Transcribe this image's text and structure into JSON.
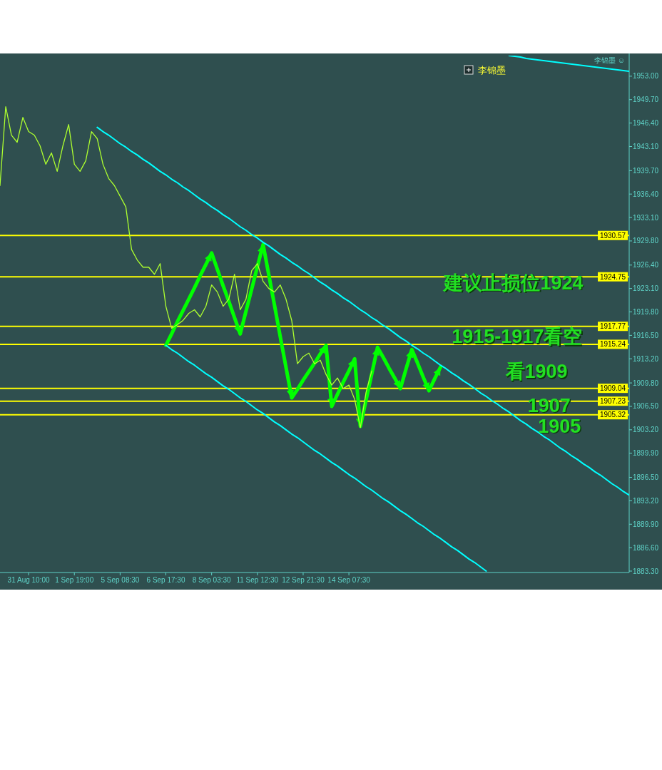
{
  "chart_data": {
    "type": "line",
    "categories": [
      null,
      null,
      null,
      null,
      null,
      "31 Aug 10:00",
      null,
      null,
      null,
      null,
      null,
      null,
      null,
      "1 Sep 19:00",
      null,
      null,
      null,
      null,
      null,
      null,
      null,
      "5 Sep 08:30",
      null,
      null,
      null,
      null,
      null,
      null,
      null,
      "6 Sep 17:30",
      null,
      null,
      null,
      null,
      null,
      null,
      null,
      "8 Sep 03:30",
      null,
      null,
      null,
      null,
      null,
      null,
      null,
      "11 Sep 12:30",
      null,
      null,
      null,
      null,
      null,
      null,
      null,
      "12 Sep 21:30",
      null,
      null,
      null,
      null,
      null,
      null,
      null,
      "14 Sep 07:30",
      null,
      null,
      null,
      null,
      null,
      null,
      null,
      null,
      null,
      null,
      null,
      null,
      null,
      null,
      null,
      null,
      null,
      null,
      null,
      null,
      null,
      null,
      null,
      null,
      null,
      null,
      null,
      null,
      null,
      null,
      null,
      null,
      null,
      null,
      null,
      null,
      null,
      null,
      null,
      null,
      null,
      null,
      null,
      null,
      null,
      null,
      null,
      null,
      null
    ],
    "ylim": [
      1883.1,
      1955.9
    ],
    "yticks": [
      {
        "value": 1953,
        "label": "1953.00"
      },
      {
        "value": 1949.7,
        "label": "1949.70"
      },
      {
        "value": 1946.4,
        "label": "1946.40"
      },
      {
        "value": 1943.1,
        "label": "1943.10"
      },
      {
        "value": 1939.7,
        "label": "1939.70"
      },
      {
        "value": 1936.4,
        "label": "1936.40"
      },
      {
        "value": 1933.1,
        "label": "1933.10"
      },
      {
        "value": 1929.8,
        "label": "1929.80"
      },
      {
        "value": 1926.4,
        "label": "1926.40"
      },
      {
        "value": 1923.1,
        "label": "1923.10"
      },
      {
        "value": 1919.8,
        "label": "1919.80"
      },
      {
        "value": 1916.5,
        "label": "1916.50"
      },
      {
        "value": 1913.2,
        "label": "1913.20"
      },
      {
        "value": 1909.8,
        "label": "1909.80"
      },
      {
        "value": 1906.5,
        "label": "1906.50"
      },
      {
        "value": 1903.2,
        "label": "1903.20"
      },
      {
        "value": 1899.9,
        "label": "1899.90"
      },
      {
        "value": 1896.5,
        "label": "1896.50"
      },
      {
        "value": 1893.2,
        "label": "1893.20"
      },
      {
        "value": 1889.9,
        "label": "1889.90"
      },
      {
        "value": 1886.6,
        "label": "1886.60"
      },
      {
        "value": 1883.3,
        "label": "1883.30"
      }
    ],
    "series": [
      {
        "color": "#adff2f",
        "values": [
          1937.6,
          1948.7,
          1944.7,
          1943.7,
          1947.2,
          1945.2,
          1944.7,
          1943.2,
          1940.6,
          1942.2,
          1939.6,
          1943.2,
          1946.2,
          1940.6,
          1939.6,
          1941.1,
          1945.2,
          1944.2,
          1940.6,
          1938.6,
          1937.6,
          1936.1,
          1934.6,
          1928.6,
          1927.1,
          1926.1,
          1926.1,
          1925.1,
          1926.6,
          1920.6,
          1917.5,
          1918.0,
          1918.6,
          1919.6,
          1920.1,
          1919.1,
          1920.6,
          1923.6,
          1922.6,
          1920.6,
          1921.6,
          1925.1,
          1920.1,
          1921.6,
          1925.6,
          1926.6,
          1924.1,
          1923.1,
          1922.6,
          1923.6,
          1921.6,
          1918.6,
          1912.5,
          1913.5,
          1914.0,
          1912.5,
          1913.0,
          1911.0,
          1909.5,
          1910.5,
          1909.0,
          1909.5,
          1907.5,
          1903.5,
          1908.5,
          1911.5,
          null,
          null,
          null,
          null,
          null,
          null,
          null,
          null,
          null,
          null,
          null,
          null,
          null,
          null,
          null,
          null,
          null,
          null,
          null,
          null,
          null,
          null,
          null,
          null,
          null,
          null,
          null,
          null,
          null,
          null,
          null,
          null,
          null,
          null,
          null,
          null,
          null,
          null,
          null,
          null,
          null,
          null,
          null,
          null,
          null
        ]
      },
      {
        "color": "#00ffff",
        "values": [
          null,
          null,
          null,
          null,
          null,
          null,
          null,
          null,
          null,
          null,
          null,
          null,
          null,
          null,
          null,
          null,
          null,
          1945.8,
          1945.2,
          1944.7,
          1944.1,
          1943.5,
          1943.0,
          1942.4,
          1941.9,
          1941.3,
          1940.8,
          1940.2,
          1939.6,
          1939.1,
          1938.5,
          1938.0,
          1937.4,
          1936.9,
          1936.3,
          1935.7,
          1935.2,
          1934.6,
          1934.1,
          1933.5,
          1933.0,
          1932.4,
          1931.8,
          1931.3,
          1930.7,
          1930.2,
          1929.6,
          1929.1,
          1928.5,
          1927.9,
          1927.4,
          1926.8,
          1926.3,
          1925.7,
          1925.2,
          1924.6,
          1924.0,
          1923.5,
          1922.9,
          1922.4,
          1921.8,
          1921.3,
          1920.7,
          1920.1,
          1919.6,
          1919.0,
          1918.5,
          1917.9,
          1917.4,
          1916.8,
          1916.2,
          1915.7,
          1915.1,
          1914.6,
          1914.0,
          1913.5,
          1912.9,
          1912.3,
          1911.8,
          1911.2,
          1910.7,
          1910.1,
          1909.6,
          1909.0,
          1908.4,
          1907.9,
          1907.3,
          1906.8,
          1906.2,
          1905.7,
          1905.1,
          1904.5,
          1904.0,
          1903.4,
          1902.9,
          1902.3,
          1901.8,
          1901.2,
          1900.6,
          1900.1,
          1899.5,
          1899.0,
          1898.4,
          1897.9,
          1897.3,
          1896.8,
          1896.2,
          1895.6,
          1895.1,
          1894.5,
          1894.0
        ]
      },
      {
        "color": "#00ffff",
        "values": [
          null,
          null,
          null,
          null,
          null,
          null,
          null,
          null,
          null,
          null,
          null,
          null,
          null,
          null,
          null,
          null,
          null,
          null,
          null,
          null,
          null,
          null,
          null,
          null,
          null,
          null,
          null,
          null,
          null,
          1915.1,
          1914.5,
          1914.0,
          1913.4,
          1912.8,
          1912.3,
          1911.7,
          1911.1,
          1910.6,
          1910.0,
          1909.4,
          1908.9,
          1908.3,
          1907.7,
          1907.2,
          1906.6,
          1906.0,
          1905.5,
          1904.9,
          1904.3,
          1903.8,
          1903.2,
          1902.6,
          1902.1,
          1901.5,
          1900.9,
          1900.3,
          1899.8,
          1899.2,
          1898.6,
          1898.1,
          1897.5,
          1896.9,
          1896.4,
          1895.8,
          1895.2,
          1894.7,
          1894.1,
          1893.5,
          1893.0,
          1892.4,
          1891.8,
          1891.3,
          1890.7,
          1890.1,
          1889.6,
          1889.0,
          1888.4,
          1887.9,
          1887.3,
          1886.7,
          1886.2,
          1885.6,
          1885.0,
          1884.5,
          1883.9,
          1883.3,
          null,
          null,
          null,
          null,
          null,
          null,
          null,
          null,
          null,
          null,
          null,
          null,
          null,
          null,
          null,
          null,
          null,
          null,
          null,
          null,
          null,
          null,
          null,
          null,
          null
        ]
      },
      {
        "color": "#00ffff",
        "values": [
          null,
          null,
          null,
          null,
          null,
          null,
          null,
          null,
          null,
          null,
          null,
          null,
          null,
          null,
          null,
          null,
          null,
          null,
          null,
          null,
          null,
          null,
          null,
          null,
          null,
          null,
          null,
          null,
          null,
          null,
          null,
          null,
          null,
          null,
          null,
          null,
          null,
          null,
          null,
          null,
          null,
          null,
          null,
          null,
          null,
          null,
          null,
          null,
          null,
          null,
          null,
          null,
          null,
          null,
          null,
          null,
          null,
          null,
          null,
          null,
          null,
          null,
          null,
          null,
          null,
          null,
          null,
          null,
          null,
          null,
          null,
          null,
          null,
          null,
          null,
          null,
          null,
          null,
          null,
          null,
          null,
          null,
          null,
          null,
          null,
          null,
          null,
          null,
          null,
          1955.9,
          1955.8,
          1955.7,
          1955.5,
          1955.4,
          1955.3,
          1955.2,
          1955.1,
          1955.0,
          1954.9,
          1954.8,
          1954.7,
          1954.6,
          1954.5,
          1954.4,
          1954.3,
          1954.2,
          1954.1,
          1954.0,
          1953.9,
          1953.8,
          1953.7
        ]
      },
      {
        "color": "#00ff00",
        "values": [
          null,
          null,
          null,
          null,
          null,
          null,
          null,
          null,
          null,
          null,
          null,
          null,
          null,
          null,
          null,
          null,
          null,
          null,
          null,
          null,
          null,
          null,
          null,
          null,
          null,
          null,
          null,
          null,
          null,
          1915.1,
          1916.7,
          1918.4,
          1920.0,
          1921.6,
          1923.2,
          1924.9,
          1926.5,
          1928.1,
          1925.8,
          1923.5,
          1921.3,
          1919.0,
          1916.7,
          1919.9,
          1923.0,
          1926.2,
          1929.3,
          1925.0,
          1920.7,
          1916.3,
          1912.0,
          1907.7,
          1908.9,
          1910.2,
          1911.4,
          1912.6,
          1913.9,
          1915.1,
          1906.5,
          1908.2,
          1909.9,
          1911.5,
          1913.2,
          1903.7,
          1907.4,
          1911.1,
          1914.8,
          1913.4,
          1911.9,
          1910.5,
          1909.0,
          1911.8,
          1914.5,
          1912.6,
          1910.6,
          1908.7,
          1910.4,
          1912.0,
          null,
          null,
          null,
          null,
          null,
          null,
          null,
          null,
          null,
          null,
          null,
          null,
          null,
          null,
          null,
          null,
          null,
          null,
          null,
          null,
          null,
          null,
          null,
          null,
          null,
          null,
          null,
          null,
          null,
          null,
          null,
          null,
          null
        ]
      }
    ],
    "ref_lines": [
      {
        "axis": "y",
        "value": 1930.57,
        "label": "1930.57",
        "color": "#ffff00"
      },
      {
        "axis": "y",
        "value": 1924.75,
        "label": "1924.75",
        "color": "#ffff00"
      },
      {
        "axis": "y",
        "value": 1917.77,
        "label": "1917.77",
        "color": "#ffff00"
      },
      {
        "axis": "y",
        "value": 1915.24,
        "label": "1915.24",
        "color": "#ffff00"
      },
      {
        "axis": "y",
        "value": 1909.04,
        "label": "1909.04",
        "color": "#ffff00"
      },
      {
        "axis": "y",
        "value": 1907.23,
        "label": "1907.23",
        "color": "#ffff00"
      },
      {
        "axis": "y",
        "value": 1905.32,
        "label": "1905.32",
        "color": "#ffff00"
      }
    ],
    "annotations": [
      "建议止损位1924",
      "1915-1917看空",
      "看1909",
      "1907",
      "1905",
      "李锦墨",
      "李锦墨 ☺"
    ]
  }
}
